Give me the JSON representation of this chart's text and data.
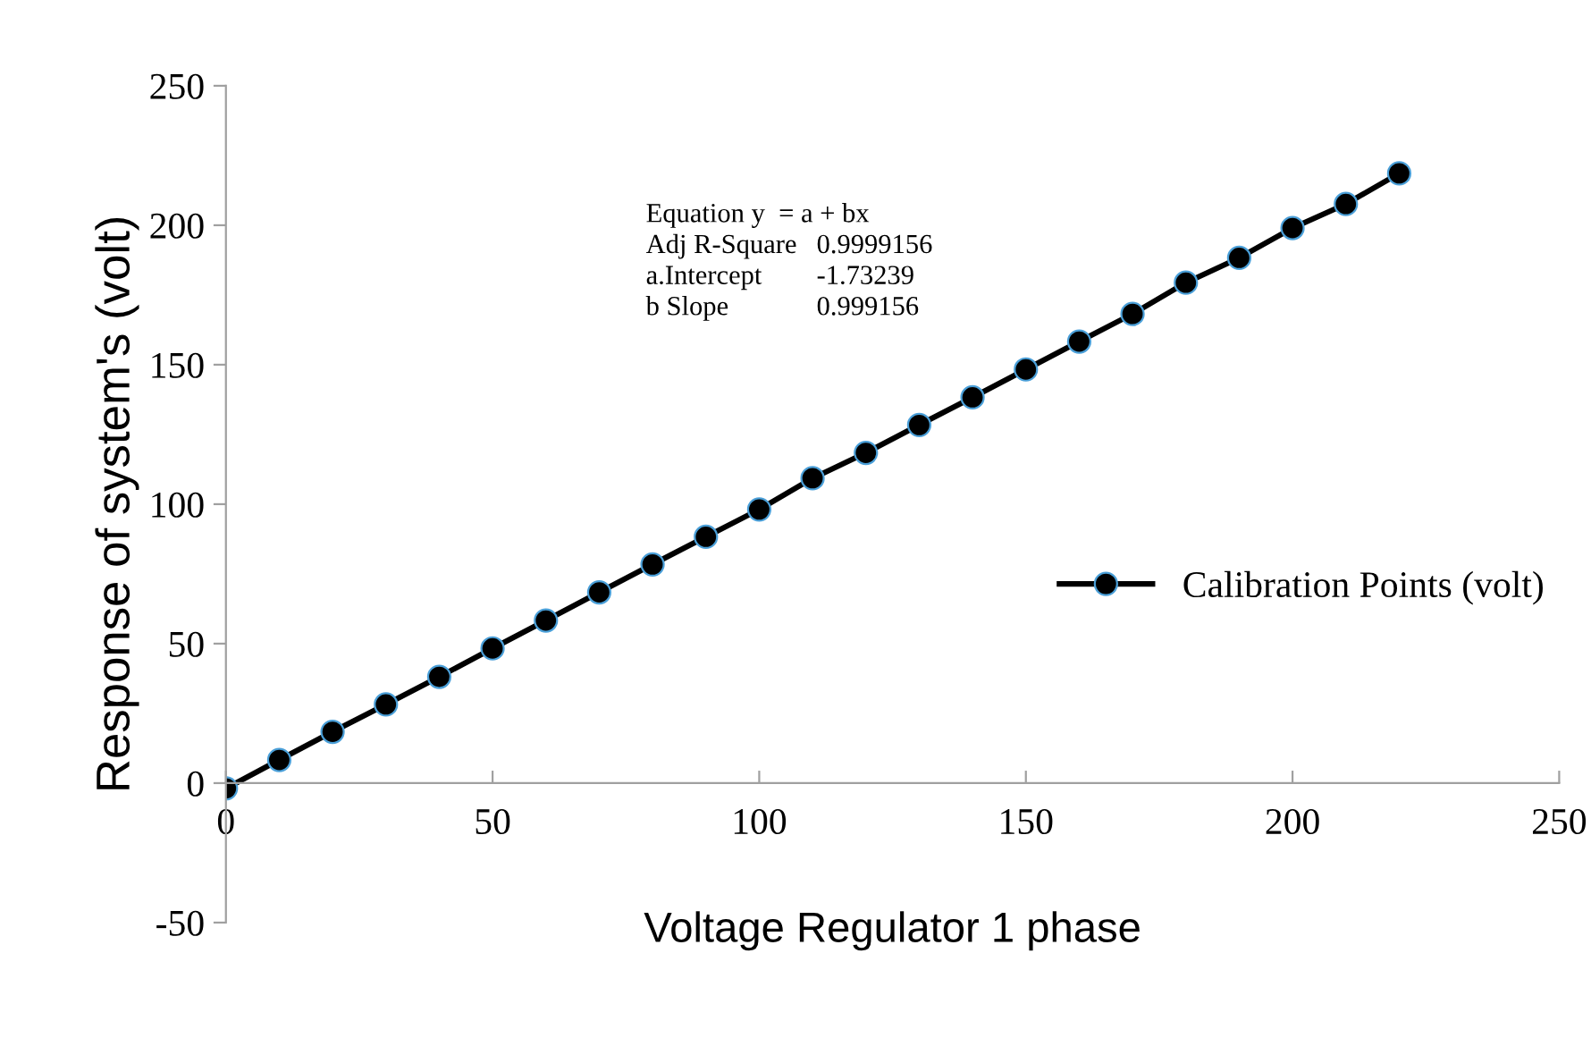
{
  "chart_data": {
    "type": "line",
    "xlabel": "Voltage Regulator 1 phase",
    "ylabel": "Response of system's (volt)",
    "x": [
      0,
      10,
      20,
      30,
      40,
      50,
      60,
      70,
      80,
      90,
      100,
      110,
      120,
      130,
      140,
      150,
      160,
      170,
      180,
      190,
      200,
      210,
      220
    ],
    "series": [
      {
        "name": "Calibration Points (volt)",
        "color": "#000000",
        "values": [
          -1.9,
          8.3,
          18.4,
          28.2,
          38.1,
          48.3,
          58.3,
          68.4,
          78.4,
          88.3,
          98.1,
          109.3,
          118.4,
          128.4,
          138.3,
          148.3,
          158.3,
          168.2,
          179.4,
          188.3,
          199,
          207.6,
          218.6
        ]
      }
    ],
    "xlim": [
      0,
      250
    ],
    "xticks": [
      0,
      50,
      100,
      150,
      200,
      250
    ],
    "ylim": [
      -50,
      250
    ],
    "yticks": [
      -50,
      0,
      50,
      100,
      150,
      200,
      250
    ],
    "marker": "circle",
    "line_style": "solid",
    "grid": false,
    "legend": "right",
    "annotations": [
      "Equation y  = a + bx",
      "Adj R-Square",
      "0.9999156",
      "a.Intercept",
      "-1.73239",
      "b Slope",
      "0.999156"
    ]
  }
}
